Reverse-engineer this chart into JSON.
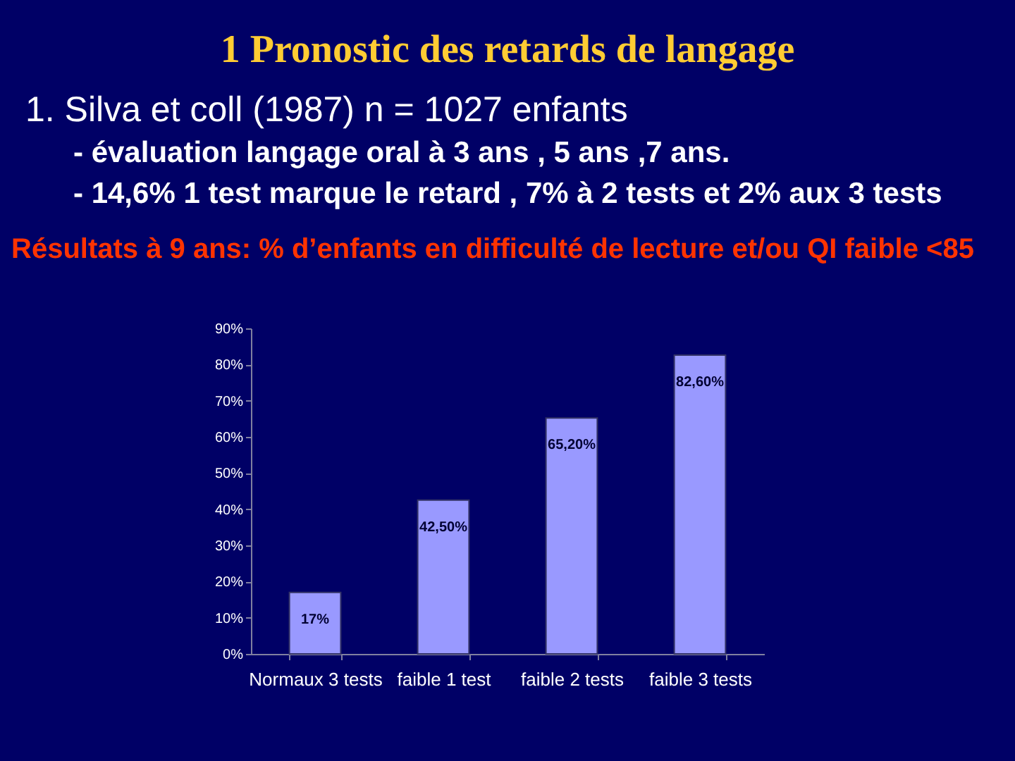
{
  "chart_data": {
    "type": "bar",
    "title": "1 Pronostic des retards de langage",
    "subtitle": "1. Silva et coll (1987) n = 1027 enfants",
    "annotations": [
      "- évaluation langage oral à 3 ans , 5 ans ,7 ans.",
      "- 14,6% 1 test marque le retard , 7% à 2 tests et 2% aux 3 tests",
      "Résultats à 9 ans: % d’enfants en difficulté de lecture et/ou QI faible <85"
    ],
    "categories": [
      "Normaux 3 tests",
      "faible 1 test",
      "faible 2 tests",
      "faible 3 tests"
    ],
    "values": [
      17,
      42.5,
      65.2,
      82.6
    ],
    "value_labels": [
      "17%",
      "42,50%",
      "65,20%",
      "82,60%"
    ],
    "color": "#9999ff",
    "ylim": [
      0,
      90
    ],
    "yticks": [
      {
        "value": 0,
        "label": "0%"
      },
      {
        "value": 10,
        "label": "10%"
      },
      {
        "value": 20,
        "label": "20%"
      },
      {
        "value": 30,
        "label": "30%"
      },
      {
        "value": 40,
        "label": "40%"
      },
      {
        "value": 50,
        "label": "50%"
      },
      {
        "value": 60,
        "label": "60%"
      },
      {
        "value": 70,
        "label": "70%"
      },
      {
        "value": 80,
        "label": "80%"
      },
      {
        "value": 90,
        "label": "90%"
      }
    ]
  }
}
